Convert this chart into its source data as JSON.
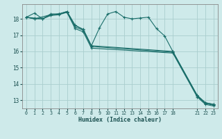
{
  "background_color": "#ceeaea",
  "grid_color": "#aacece",
  "line_color": "#1a6e6a",
  "xlabel": "Humidex (Indice chaleur)",
  "xlim": [
    -0.5,
    23.5
  ],
  "ylim": [
    12.5,
    18.9
  ],
  "yticks": [
    13,
    14,
    15,
    16,
    17,
    18
  ],
  "xticks": [
    0,
    1,
    2,
    3,
    4,
    5,
    6,
    7,
    8,
    9,
    10,
    11,
    12,
    13,
    14,
    15,
    16,
    17,
    18,
    21,
    22,
    23
  ],
  "lines": [
    {
      "x": [
        0,
        1,
        2,
        3,
        4,
        5,
        6,
        7,
        8,
        9,
        10,
        11,
        12,
        13,
        14,
        15,
        16,
        17,
        18,
        21,
        22,
        23
      ],
      "y": [
        18.1,
        18.35,
        18.0,
        18.3,
        18.3,
        18.45,
        17.6,
        17.35,
        16.35,
        17.45,
        18.3,
        18.45,
        18.1,
        18.0,
        18.05,
        18.1,
        17.4,
        16.95,
        16.0,
        13.3,
        12.85,
        12.75
      ]
    },
    {
      "x": [
        0,
        1,
        3,
        4,
        5,
        6,
        7,
        8,
        18,
        21,
        22,
        23
      ],
      "y": [
        18.1,
        18.0,
        18.25,
        18.3,
        18.45,
        17.6,
        17.35,
        16.35,
        16.0,
        13.3,
        12.85,
        12.75
      ]
    },
    {
      "x": [
        0,
        1,
        2,
        3,
        4,
        5,
        6,
        7,
        8,
        18,
        21,
        22,
        23
      ],
      "y": [
        18.1,
        18.05,
        18.0,
        18.25,
        18.3,
        18.4,
        17.5,
        17.3,
        16.3,
        15.95,
        13.25,
        12.8,
        12.7
      ]
    },
    {
      "x": [
        0,
        1,
        2,
        3,
        4,
        5,
        6,
        7,
        8,
        18,
        21,
        22,
        23
      ],
      "y": [
        18.1,
        18.0,
        18.0,
        18.2,
        18.25,
        18.4,
        17.4,
        17.2,
        16.2,
        15.9,
        13.2,
        12.75,
        12.65
      ]
    }
  ]
}
